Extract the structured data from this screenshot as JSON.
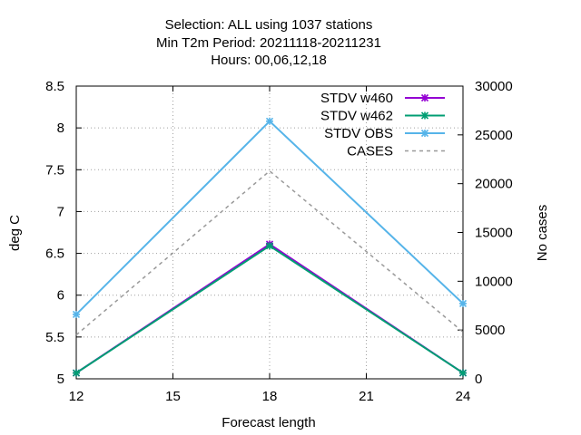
{
  "chart_data": {
    "type": "line",
    "title_lines": [
      "Selection: ALL using  1037 stations",
      "Min T2m   Period: 20211118-20211231",
      "Hours:  00,06,12,18"
    ],
    "xlabel": "Forecast length",
    "ylabel": "deg C",
    "y2label": "No cases",
    "x_ticks": [
      12,
      15,
      18,
      21,
      24
    ],
    "y_ticks": [
      5,
      5.5,
      6,
      6.5,
      7,
      7.5,
      8,
      8.5
    ],
    "y2_ticks": [
      0,
      5000,
      10000,
      15000,
      20000,
      25000,
      30000
    ],
    "xlim": [
      12,
      24
    ],
    "ylim": [
      5,
      8.5
    ],
    "y2lim": [
      0,
      30000
    ],
    "grid": true,
    "legend_position": "top-right",
    "series": [
      {
        "name": "STDV w460",
        "axis": "y",
        "color": "#9400d3",
        "style": "solid",
        "marker": "cross",
        "x": [
          12,
          18,
          24
        ],
        "values": [
          5.07,
          6.61,
          5.07
        ]
      },
      {
        "name": "STDV w462",
        "axis": "y",
        "color": "#009e73",
        "style": "solid",
        "marker": "cross",
        "x": [
          12,
          18,
          24
        ],
        "values": [
          5.07,
          6.59,
          5.07
        ]
      },
      {
        "name": "STDV OBS",
        "axis": "y",
        "color": "#56b4e9",
        "style": "solid",
        "marker": "cross",
        "x": [
          12,
          18,
          24
        ],
        "values": [
          5.77,
          8.08,
          5.9
        ]
      },
      {
        "name": "CASES",
        "axis": "y2",
        "color": "#999999",
        "style": "dashed",
        "marker": "none",
        "x": [
          12,
          18,
          24
        ],
        "values": [
          4500,
          21300,
          4800
        ]
      }
    ]
  }
}
